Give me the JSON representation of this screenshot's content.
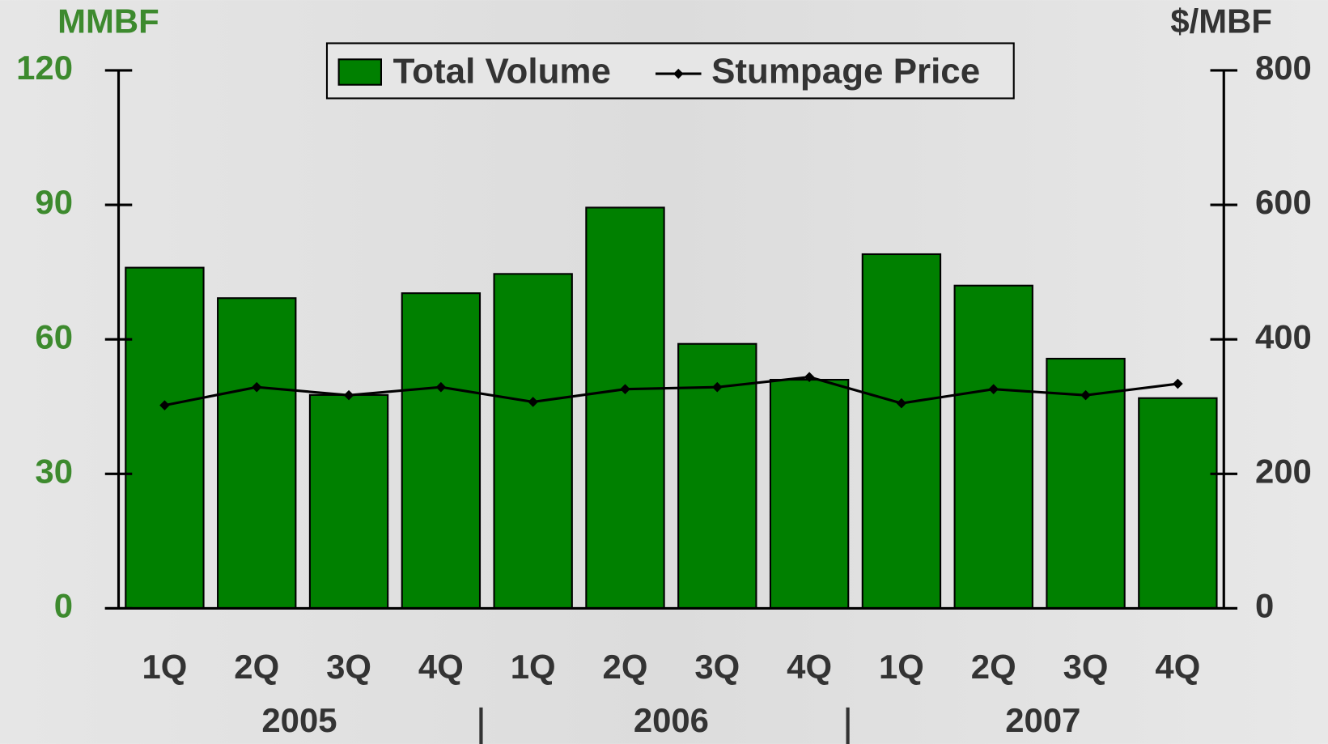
{
  "chart_data": {
    "type": "bar_line",
    "y_unit_label": "MMBF",
    "y2_unit_label": "$/MBF",
    "categories": [
      "1Q",
      "2Q",
      "3Q",
      "4Q",
      "1Q",
      "2Q",
      "3Q",
      "4Q",
      "1Q",
      "2Q",
      "3Q",
      "4Q"
    ],
    "years": [
      "2005",
      "2006",
      "2007"
    ],
    "series": [
      {
        "name": "Total Volume",
        "color": "#008000",
        "type": "bar",
        "values": [
          76.0,
          69.2,
          47.6,
          70.3,
          74.6,
          89.4,
          59.0,
          51.0,
          79.0,
          72.0,
          55.7,
          46.9
        ]
      },
      {
        "name": "Stumpage Price",
        "color": "#000000",
        "type": "line",
        "axis": "y2",
        "values": [
          302,
          329,
          317,
          329,
          307,
          326,
          329,
          344,
          305,
          326,
          317,
          334
        ]
      }
    ],
    "ylim": [
      0,
      120
    ],
    "yticks": [
      0,
      30,
      60,
      90,
      120
    ],
    "y2lim": [
      0,
      800
    ],
    "y2ticks": [
      0,
      200,
      400,
      600,
      800
    ],
    "legend": "top"
  }
}
